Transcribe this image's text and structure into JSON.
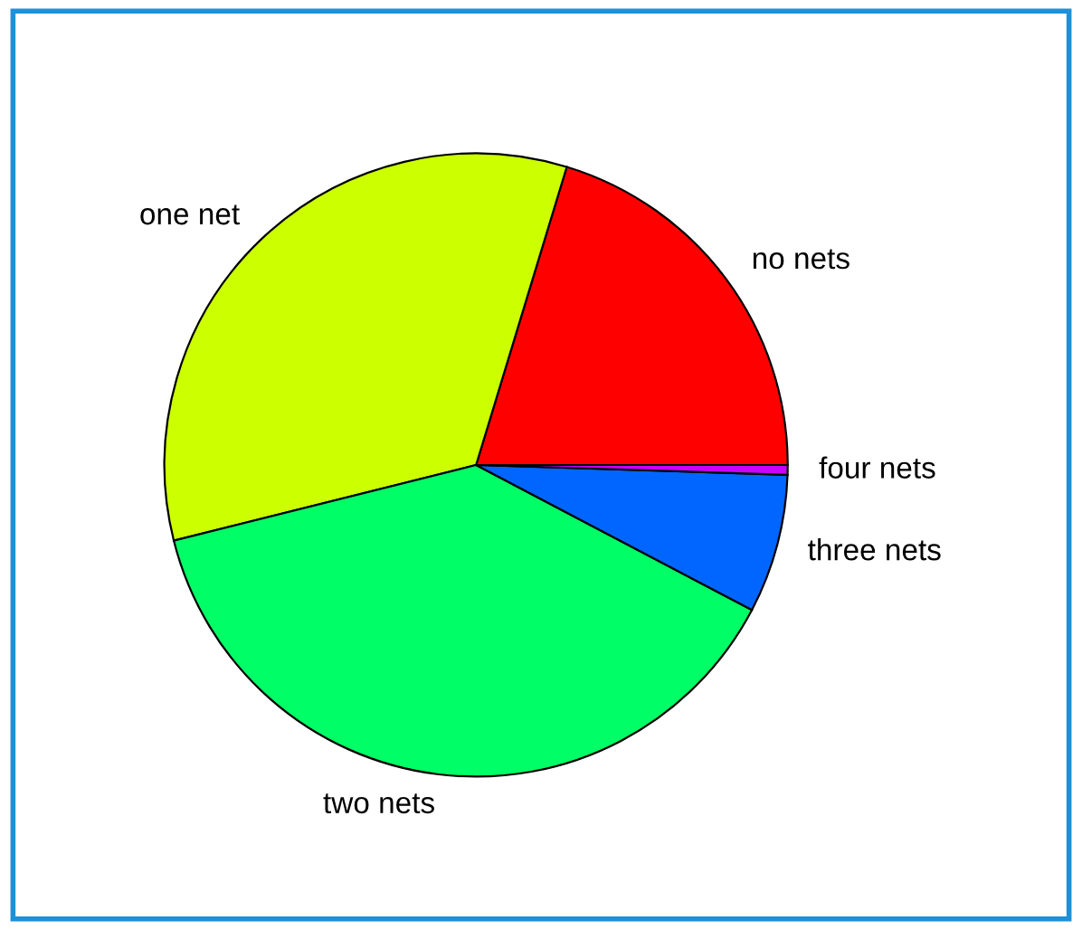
{
  "chart_data": {
    "type": "pie",
    "categories": [
      "no nets",
      "one net",
      "two nets",
      "three nets",
      "four nets"
    ],
    "values": [
      20.3,
      33.6,
      38.4,
      7.2,
      0.5
    ],
    "colors": [
      "#ff0000",
      "#ccff00",
      "#00ff66",
      "#0066ff",
      "#cc00ff"
    ]
  }
}
